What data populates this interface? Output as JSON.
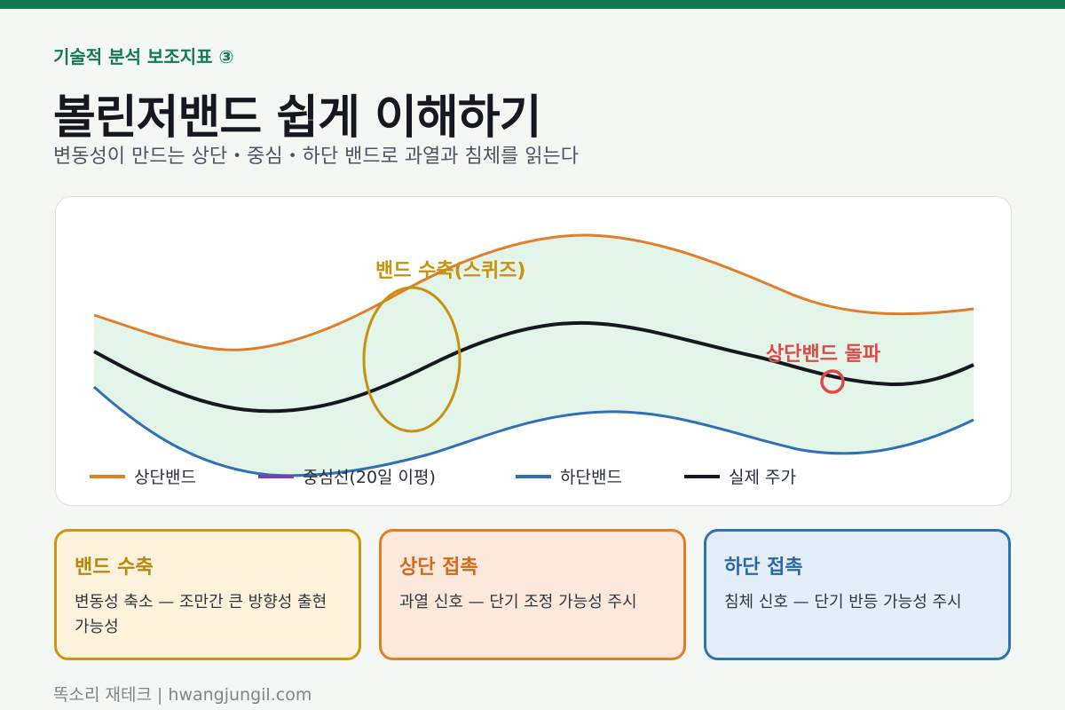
{
  "header": {
    "eyebrow": "기술적 분석 보조지표 ③",
    "title": "볼린저밴드 쉽게 이해하기",
    "subtitle": "변동성이 만드는 상단・중심・하단 밴드로 과열과 침체를 읽는다"
  },
  "diagram": {
    "legend": [
      {
        "label": "상단밴드",
        "color": "#e07e2a"
      },
      {
        "label": "중심선(20일 이평)",
        "color": "#7a3fb0"
      },
      {
        "label": "하단밴드",
        "color": "#2f71b4"
      },
      {
        "label": "실제 주가",
        "color": "#15191f"
      }
    ],
    "annotations": {
      "squeeze": "밴드 수축(스퀴즈)",
      "breakout": "상단밴드 돌파"
    },
    "colors": {
      "band_fill": "#e3f5e9",
      "upper": "#e07e2a",
      "lower": "#2f71b4",
      "price": "#15191f",
      "squeeze": "#c89210",
      "breakout": "#e04848"
    }
  },
  "cards": [
    {
      "title": "밴드 수축",
      "desc": "변동성 축소 — 조만간 큰 방향성 출현 가능성"
    },
    {
      "title": "상단 접촉",
      "desc": "과열 신호 — 단기 조정 가능성 주시"
    },
    {
      "title": "하단 접촉",
      "desc": "침체 신호 — 단기 반등 가능성 주시"
    }
  ],
  "footer": "똑소리 재테크 | hwangjungil.com"
}
